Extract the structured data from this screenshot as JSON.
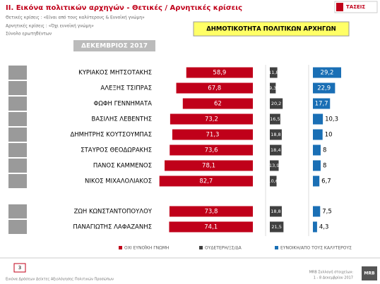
{
  "header": {
    "title": "II. Εικόνα πολιτικών αρχηγών  - Θετικές / Αρνητικές κρίσεις",
    "subtitles": [
      "Θετικές κρίσεις : «Είναι από τους καλύτερους &  Ευνοϊκή γνώμη»",
      "Αρνητικές κρίσεις : «Όχι ευνοϊκή γνώμη»",
      "Σύνολο ερωτηθέντων"
    ],
    "logo": "ΤΑΣΕΙΣ",
    "box_title": "ΔΗΜΟΤΙΚΟΤΗΤΑ ΠΟΛΙΤΙΚΩΝ ΑΡΧΗΓΩΝ",
    "period": "ΔΕΚΕΜΒΡΙΟΣ 2017"
  },
  "chart_data": {
    "type": "bar",
    "categories": [
      "ΚΥΡΙΑΚΟΣ ΜΗΤΣΟΤΑΚΗΣ",
      "ΑΛΕΞΗΣ ΤΣΙΠΡΑΣ",
      "ΦΩΦΗ ΓΕΝΝΗΜΑΤΑ",
      "ΒΑΣΙΛΗΣ ΛΕΒΕΝΤΗΣ",
      "ΔΗΜΗΤΡΗΣ ΚΟΥΤΣΟΥΜΠΑΣ",
      "ΣΤΑΥΡΟΣ ΘΕΟΔΩΡΑΚΗΣ",
      "ΠΑΝΟΣ ΚΑΜΜΕΝΟΣ",
      "ΝΙΚΟΣ ΜΙΧΑΛΟΛΙΑΚΟΣ",
      "ΖΩΗ ΚΩΝΣΤΑΝΤΟΠΟΥΛΟΥ",
      "ΠΑΝΑΓΙΩΤΗΣ ΛΑΦΑΖΑΝΗΣ"
    ],
    "series": [
      {
        "name": "ΟΧΙ ΕΥΝΟΪΚΗ ΓΝΩΜΗ",
        "color": "#c0001a",
        "values": [
          58.9,
          67.8,
          62,
          73.2,
          71.3,
          73.6,
          78.1,
          82.7,
          73.8,
          74.1
        ],
        "value_labels": [
          "58,9",
          "67,8",
          "62",
          "73,2",
          "71,3",
          "73,6",
          "78,1",
          "82,7",
          "73,8",
          "74,1"
        ]
      },
      {
        "name": "ΟΥΔΕΤΕΡΗ/ΞΣ/ΔΑ",
        "color": "#404040",
        "values": [
          11.8,
          9.3,
          20.2,
          16.5,
          18.8,
          18.4,
          13.9,
          10.6,
          18.8,
          21.5
        ],
        "value_labels": [
          "11,8",
          "9,3",
          "20,2",
          "16,5",
          "18,8",
          "18,4",
          "13,9",
          "10,6",
          "18,8",
          "21,5"
        ]
      },
      {
        "name": "ΕΥΝΟΙΚΗ/ΑΠΟ ΤΟΥΣ ΚΑΛΥΤΕΡΟΥΣ",
        "color": "#1a6fb5",
        "values": [
          29.2,
          22.9,
          17.7,
          10.3,
          10,
          8,
          8,
          6.7,
          7.5,
          4.3
        ],
        "value_labels": [
          "29,2",
          "22,9",
          "17,7",
          "10,3",
          "10",
          "8",
          "8",
          "6,7",
          "7,5",
          "4,3"
        ]
      }
    ]
  },
  "footer": {
    "page": "3",
    "left": "Εικόνα Δράσεων Δείκτες Αξιολόγησης Πολιτικών Προσώπων",
    "source": "MRB Συλλογή στοιχείων:",
    "dates": "1 - 8 Δεκεμβρίου 2017",
    "brand": "MRB"
  }
}
